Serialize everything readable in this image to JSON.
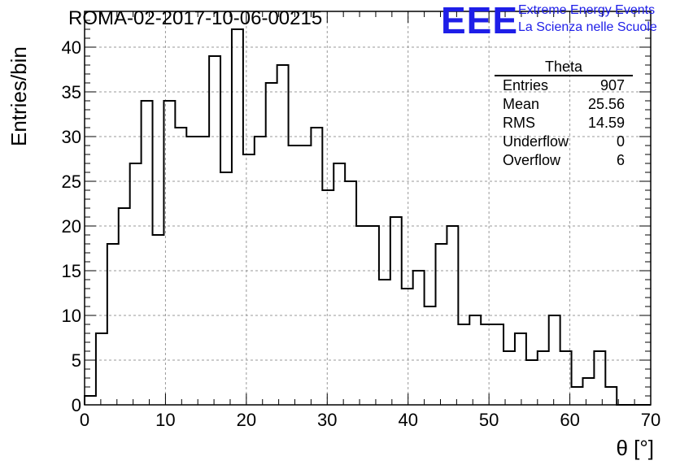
{
  "header": {
    "run_title": "ROMA-02-2017-10-06-00215"
  },
  "logo": {
    "letters": "EEE",
    "line1": "Extreme Energy Events",
    "line2": "La Scienza nelle Scuole",
    "color": "#1e1ee8"
  },
  "stats": {
    "title": "Theta",
    "rows": [
      {
        "label": "Entries",
        "value": "907"
      },
      {
        "label": "Mean",
        "value": "25.56"
      },
      {
        "label": "RMS",
        "value": "14.59"
      },
      {
        "label": "Underflow",
        "value": "0"
      },
      {
        "label": "Overflow",
        "value": "6"
      }
    ]
  },
  "chart_data": {
    "type": "bar",
    "histogram": true,
    "xlabel": "θ [°]",
    "ylabel": "Entries/bin",
    "xlim": [
      0,
      70
    ],
    "ylim": [
      0,
      44
    ],
    "grid": true,
    "bin_width": 1.4,
    "x_ticks": [
      0,
      10,
      20,
      30,
      40,
      50,
      60,
      70
    ],
    "y_ticks": [
      0,
      5,
      10,
      15,
      20,
      25,
      30,
      35,
      40
    ],
    "bin_edges_start": 0,
    "values": [
      1,
      8,
      18,
      22,
      27,
      34,
      19,
      34,
      31,
      30,
      30,
      39,
      26,
      42,
      28,
      30,
      36,
      38,
      29,
      29,
      31,
      24,
      27,
      25,
      20,
      20,
      14,
      21,
      13,
      15,
      11,
      18,
      20,
      9,
      10,
      9,
      9,
      6,
      8,
      5,
      6,
      10,
      6,
      2,
      3,
      6,
      2,
      0,
      0,
      0
    ]
  }
}
